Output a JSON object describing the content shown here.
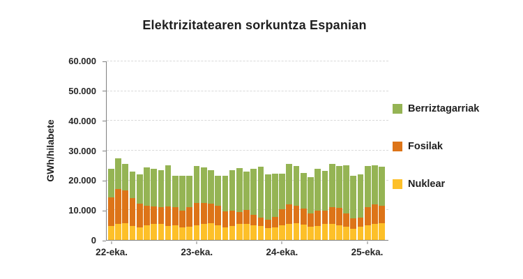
{
  "title": "Elektrizitatearen sorkuntza Espanian",
  "chart_data": {
    "type": "bar",
    "stacked": true,
    "title": "Elektrizitatearen sorkuntza Espanian",
    "xlabel": "",
    "ylabel": "GWh/hilabete",
    "ylim": [
      0,
      60000
    ],
    "grid": true,
    "legend_position": "right",
    "yticks": [
      {
        "value": 0,
        "label": "0"
      },
      {
        "value": 10000,
        "label": "10.000"
      },
      {
        "value": 20000,
        "label": "20.000"
      },
      {
        "value": 30000,
        "label": "30.000"
      },
      {
        "value": 40000,
        "label": "40.000"
      },
      {
        "value": 50000,
        "label": "50.000"
      },
      {
        "value": 60000,
        "label": "60.000"
      }
    ],
    "xticks": [
      {
        "index": 0,
        "label": "22-eka."
      },
      {
        "index": 12,
        "label": "23-eka."
      },
      {
        "index": 24,
        "label": "24-eka."
      },
      {
        "index": 36,
        "label": "25-eka."
      }
    ],
    "categories": [
      "2022-06",
      "2022-07",
      "2022-08",
      "2022-09",
      "2022-10",
      "2022-11",
      "2022-12",
      "2023-01",
      "2023-02",
      "2023-03",
      "2023-04",
      "2023-05",
      "2023-06",
      "2023-07",
      "2023-08",
      "2023-09",
      "2023-10",
      "2023-11",
      "2023-12",
      "2024-01",
      "2024-02",
      "2024-03",
      "2024-04",
      "2024-05",
      "2024-06",
      "2024-07",
      "2024-08",
      "2024-09",
      "2024-10",
      "2024-11",
      "2024-12",
      "2025-01",
      "2025-02",
      "2025-03",
      "2025-04",
      "2025-05",
      "2025-06",
      "2025-07",
      "2025-08"
    ],
    "series": [
      {
        "name": "Nuklear",
        "color": "#fdc029",
        "values": [
          4800,
          5500,
          5600,
          4600,
          4300,
          5000,
          5300,
          5500,
          4800,
          5000,
          4300,
          4500,
          4900,
          5500,
          5600,
          5000,
          4200,
          4800,
          5400,
          5500,
          5000,
          4600,
          3900,
          4300,
          4900,
          5500,
          5600,
          5100,
          4400,
          4800,
          5300,
          5500,
          4900,
          4400,
          3800,
          4500,
          5000,
          5500,
          5600
        ]
      },
      {
        "name": "Fosilak",
        "color": "#dd7418",
        "values": [
          9500,
          11500,
          11000,
          9500,
          8000,
          6500,
          6000,
          5500,
          6500,
          6000,
          5500,
          6500,
          7500,
          7000,
          6500,
          6500,
          5500,
          5000,
          4000,
          4500,
          3500,
          2800,
          3000,
          3500,
          5500,
          6500,
          6000,
          5500,
          4500,
          5000,
          4500,
          5500,
          6000,
          4500,
          3500,
          3000,
          6000,
          6500,
          6000
        ]
      },
      {
        "name": "Berriztagarriak",
        "color": "#95b454",
        "values": [
          9700,
          10500,
          8900,
          8900,
          9700,
          13000,
          12700,
          12500,
          13700,
          10500,
          11700,
          10500,
          12400,
          12000,
          11400,
          10000,
          11800,
          13700,
          14800,
          13000,
          15500,
          17100,
          15100,
          14400,
          11900,
          13500,
          13200,
          11900,
          12100,
          14200,
          13500,
          14500,
          13900,
          16100,
          14200,
          14500,
          13800,
          13000,
          12900
        ]
      }
    ],
    "legend": [
      "Berriztagarriak",
      "Fosilak",
      "Nuklear"
    ]
  }
}
